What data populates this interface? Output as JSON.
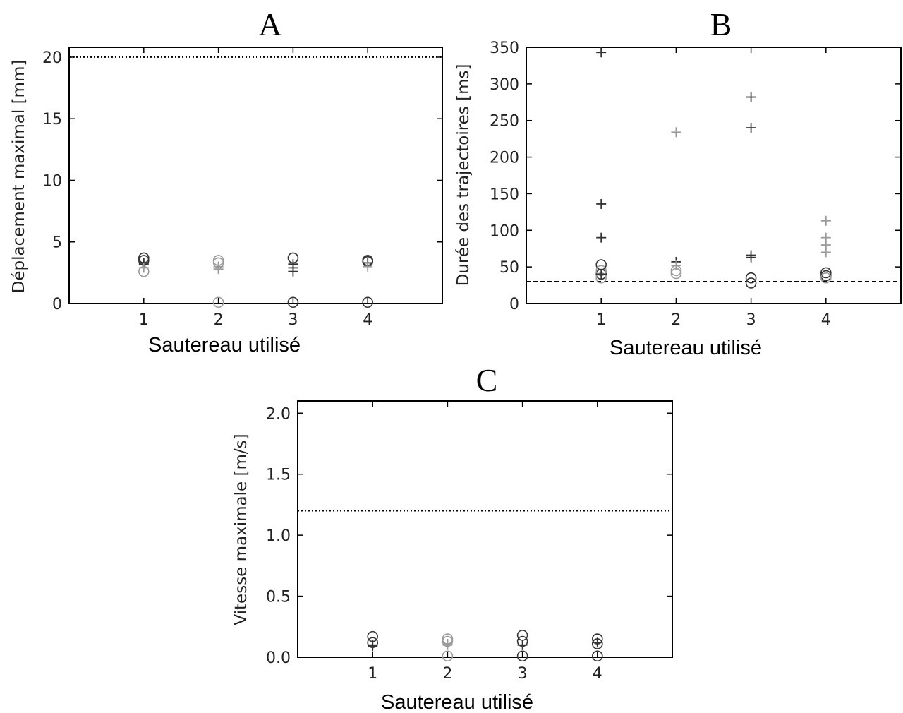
{
  "chart_data": [
    {
      "type": "scatter",
      "panel_label": "A",
      "xlabel": "Sautereau utilisé",
      "ylabel": "Déplacement maximal [mm]",
      "categories": [
        "1",
        "2",
        "3",
        "4"
      ],
      "xlim": [
        0,
        5
      ],
      "ylim": [
        0,
        20.8
      ],
      "yticks": [
        0,
        5,
        10,
        15,
        20
      ],
      "reference_line": {
        "value": 20,
        "style": "dotted"
      },
      "series": [
        {
          "marker": "circle",
          "color": "#333333",
          "points": [
            [
              1,
              3.5
            ],
            [
              1,
              3.7
            ],
            [
              3,
              3.7
            ],
            [
              3,
              0.1
            ],
            [
              4,
              3.4
            ],
            [
              4,
              3.5
            ],
            [
              4,
              0.1
            ]
          ]
        },
        {
          "marker": "circle",
          "color": "#9a9a9a",
          "points": [
            [
              1,
              2.6
            ],
            [
              2,
              3.5
            ],
            [
              2,
              3.3
            ],
            [
              2,
              0.1
            ]
          ]
        },
        {
          "marker": "plus",
          "color": "#333333",
          "points": [
            [
              1,
              3.3
            ],
            [
              1,
              3.2
            ],
            [
              3,
              3.2
            ],
            [
              3,
              2.6
            ],
            [
              3,
              2.9
            ],
            [
              4,
              3.3
            ]
          ]
        },
        {
          "marker": "plus",
          "color": "#9a9a9a",
          "points": [
            [
              1,
              2.9
            ],
            [
              2,
              3.0
            ],
            [
              2,
              2.8
            ],
            [
              4,
              3.0
            ]
          ]
        }
      ]
    },
    {
      "type": "scatter",
      "panel_label": "B",
      "xlabel": "Sautereau utilisé",
      "ylabel": "Durée des trajectoires [ms]",
      "categories": [
        "1",
        "2",
        "3",
        "4"
      ],
      "xlim": [
        0,
        5
      ],
      "ylim": [
        0,
        350
      ],
      "yticks": [
        0,
        50,
        100,
        150,
        200,
        250,
        300,
        350
      ],
      "reference_line": {
        "value": 30,
        "style": "dashed"
      },
      "series": [
        {
          "marker": "circle",
          "color": "#333333",
          "points": [
            [
              1,
              53
            ],
            [
              1,
              40
            ],
            [
              3,
              35
            ],
            [
              3,
              28
            ],
            [
              4,
              42
            ],
            [
              4,
              38
            ]
          ]
        },
        {
          "marker": "circle",
          "color": "#9a9a9a",
          "points": [
            [
              1,
              35
            ],
            [
              1,
              45
            ],
            [
              2,
              45
            ],
            [
              2,
              41
            ],
            [
              4,
              35
            ]
          ]
        },
        {
          "marker": "plus",
          "color": "#333333",
          "points": [
            [
              1,
              343
            ],
            [
              1,
              136
            ],
            [
              1,
              90
            ],
            [
              1,
              40
            ],
            [
              2,
              57
            ],
            [
              3,
              282
            ],
            [
              3,
              240
            ],
            [
              3,
              66
            ],
            [
              3,
              63
            ]
          ]
        },
        {
          "marker": "plus",
          "color": "#9a9a9a",
          "points": [
            [
              2,
              234
            ],
            [
              2,
              52
            ],
            [
              4,
              113
            ],
            [
              4,
              90
            ],
            [
              4,
              80
            ],
            [
              4,
              70
            ]
          ]
        }
      ]
    },
    {
      "type": "scatter",
      "panel_label": "C",
      "xlabel": "Sautereau utilisé",
      "ylabel": "Vitesse maximale [m/s]",
      "categories": [
        "1",
        "2",
        "3",
        "4"
      ],
      "xlim": [
        0,
        5
      ],
      "ylim": [
        0,
        2.1
      ],
      "yticks": [
        0.0,
        0.5,
        1.0,
        1.5,
        2.0
      ],
      "ytick_labels": [
        "0.0",
        "0.5",
        "1.0",
        "1.5",
        "2.0"
      ],
      "reference_line": {
        "value": 1.2,
        "style": "dotted"
      },
      "series": [
        {
          "marker": "circle",
          "color": "#333333",
          "points": [
            [
              1,
              0.17
            ],
            [
              1,
              0.12
            ],
            [
              3,
              0.18
            ],
            [
              3,
              0.13
            ],
            [
              3,
              0.01
            ],
            [
              4,
              0.15
            ],
            [
              4,
              0.11
            ],
            [
              4,
              0.01
            ]
          ]
        },
        {
          "marker": "circle",
          "color": "#9a9a9a",
          "points": [
            [
              2,
              0.15
            ],
            [
              2,
              0.13
            ],
            [
              2,
              0.01
            ]
          ]
        },
        {
          "marker": "plus",
          "color": "#333333",
          "points": [
            [
              1,
              0.09
            ],
            [
              1,
              0.1
            ],
            [
              3,
              0.1
            ],
            [
              4,
              0.12
            ]
          ]
        },
        {
          "marker": "plus",
          "color": "#9a9a9a",
          "points": [
            [
              2,
              0.1
            ],
            [
              2,
              0.11
            ]
          ]
        }
      ]
    }
  ]
}
